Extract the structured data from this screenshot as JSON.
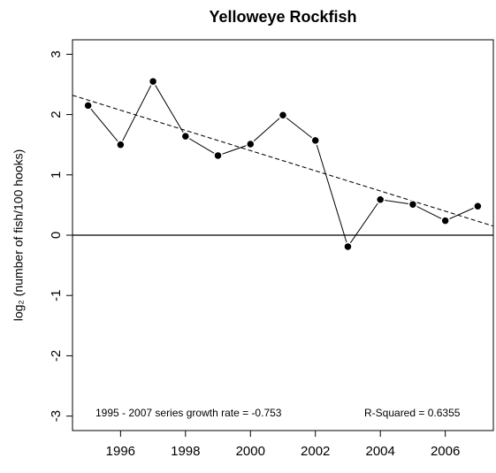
{
  "chart_data": {
    "type": "line",
    "title": "Yelloweye Rockfish",
    "ylabel": "log₂ (number of fish/100 hooks)",
    "x": [
      1995,
      1996,
      1997,
      1998,
      1999,
      2000,
      2001,
      2002,
      2003,
      2004,
      2005,
      2006,
      2007
    ],
    "series": [
      {
        "color": "#000000",
        "values": [
          2.15,
          1.5,
          2.55,
          1.64,
          1.32,
          1.51,
          1.99,
          1.57,
          -0.19,
          0.59,
          0.51,
          0.24,
          0.48
        ]
      }
    ],
    "trend": {
      "x": [
        1994.52,
        2007.48
      ],
      "values": [
        2.32,
        0.15
      ]
    },
    "hline": 0,
    "annotations": [
      "1995 - 2007   series growth rate =  -0.753",
      "R-Squared = 0.6355"
    ],
    "xlim": [
      1994.52,
      2007.48
    ],
    "ylim": [
      -3.24,
      3.24
    ],
    "xticks": [
      1996,
      1998,
      2000,
      2002,
      2004,
      2006
    ],
    "yticks": [
      -3,
      -2,
      -1,
      0,
      1,
      2,
      3
    ]
  }
}
